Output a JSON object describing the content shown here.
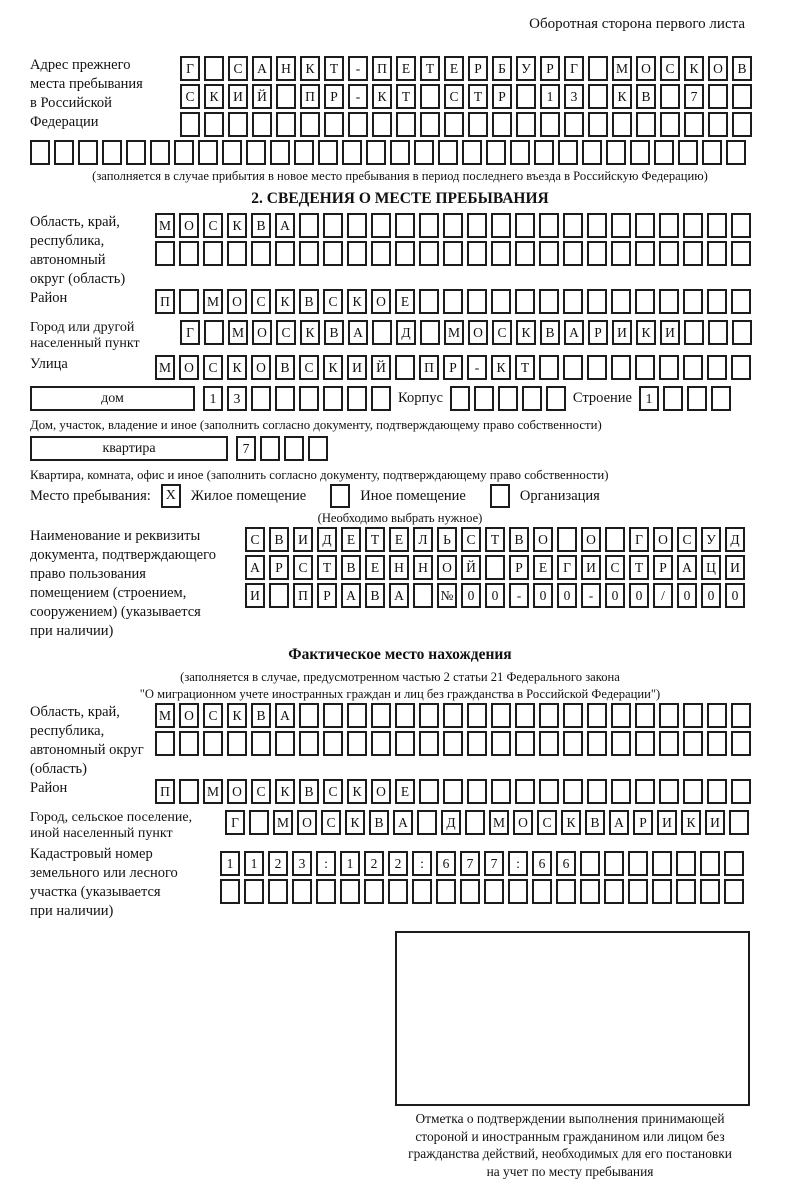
{
  "page_title": "Оборотная сторона первого листа",
  "prev_address": {
    "label_lines": [
      "Адрес прежнего",
      "места пребывания",
      "в Российской",
      "Федерации"
    ],
    "rows": [
      "Г САНКТ-ПЕТЕРБУРГ МОСКОВ",
      "СКИЙ ПР-КТ СТР 13 КВ 7",
      "",
      ""
    ],
    "note": "(заполняется в случае прибытия в новое место пребывания в период последнего въезда в Российскую Федерацию)"
  },
  "section2": {
    "title": "2. СВЕДЕНИЯ О МЕСТЕ ПРЕБЫВАНИЯ",
    "region": {
      "label_lines": [
        "Область, край,",
        "республика,",
        "автономный",
        "округ (область)"
      ],
      "rows": [
        "МОСКВА",
        ""
      ]
    },
    "district": {
      "label": "Район",
      "row": "П МОСКВСКОЕ"
    },
    "city": {
      "label_lines": [
        "Город или другой",
        "населенный пункт"
      ],
      "row": "Г МОСКВА Д МОСКВАРИКИ"
    },
    "street": {
      "label": "Улица",
      "row": "МОСКОВСКИЙ ПР-КТ"
    },
    "house": {
      "dom_label": "дом",
      "dom_cells": "13",
      "korpus_label": "Корпус",
      "korpus_cells": "",
      "stroenie_label": "Строение",
      "stroenie_cells": "1"
    },
    "house_note": "Дом, участок, владение и иное (заполнить согласно документу, подтверждающему право собственности)",
    "apartment": {
      "box_label": "квартира",
      "cells": "7"
    },
    "apartment_note": "Квартира, комната, офис и иное (заполнить согласно документу, подтверждающему право собственности)",
    "stay_type": {
      "label": "Место пребывания:",
      "options": [
        {
          "label": "Жилое помещение",
          "mark": "X"
        },
        {
          "label": "Иное помещение",
          "mark": ""
        },
        {
          "label": "Организация",
          "mark": ""
        }
      ],
      "note": "(Необходимо выбрать нужное)"
    },
    "document": {
      "label_lines": [
        "Наименование и реквизиты",
        "документа, подтверждающего",
        "право пользования",
        "помещением (строением,",
        "сооружением) (указывается",
        "при наличии)"
      ],
      "rows": [
        "СВИДЕТЕЛЬСТВО О ГОСУД",
        "АРСТВЕННОЙ РЕГИСТРАЦИ",
        "И ПРАВА №00-00-00/000"
      ]
    }
  },
  "actual_location": {
    "title": "Фактическое место нахождения",
    "note_lines": [
      "(заполняется в случае, предусмотренном частью 2 статьи 21 Федерального закона",
      "\"О миграционном учете иностранных граждан и лиц без гражданства в Российской Федерации\")"
    ],
    "region": {
      "label_lines": [
        "Область, край,",
        "республика,",
        "автономный округ",
        "(область)"
      ],
      "rows": [
        "МОСКВА",
        ""
      ]
    },
    "district": {
      "label": "Район",
      "row": "П МОСКВСКОЕ"
    },
    "city": {
      "label_lines": [
        "Город, сельское поселение,",
        "иной населенный пункт"
      ],
      "row": "Г МОСКВА Д МОСКВАРИКИ"
    },
    "cadastre": {
      "label_lines": [
        "Кадастровый номер",
        "земельного или лесного",
        "участка (указывается",
        "при наличии)"
      ],
      "rows": [
        "1123:122:677:66",
        ""
      ]
    }
  },
  "confirmation": {
    "caption_lines": [
      "Отметка о подтверждении выполнения принимающей",
      "стороной и иностранным гражданином или лицом без",
      "гражданства действий, необходимых для его постановки",
      "на учет по месту пребывания"
    ]
  }
}
